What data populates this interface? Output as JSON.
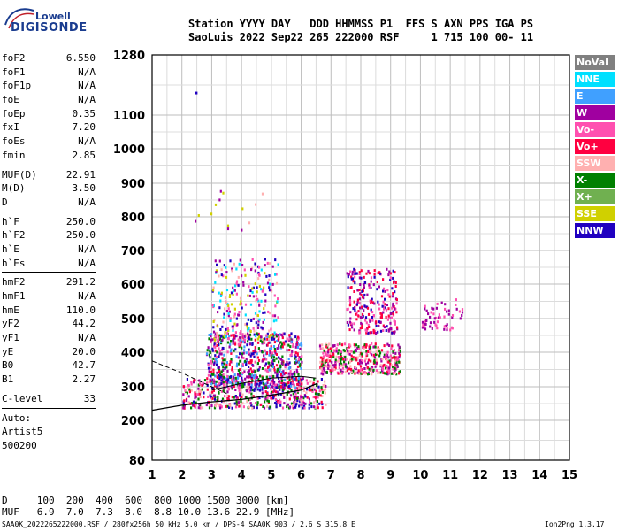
{
  "header": {
    "logo_top": "Lowell",
    "logo_main": "DIGISONDE",
    "line1": "Station YYYY DAY   DDD HHMMSS P1  FFS S AXN PPS IGA PS",
    "line2": "SaoLuis 2022 Sep22 265 222000 RSF     1 715 100 00- 11"
  },
  "params_groups": [
    [
      {
        "name": "foF2",
        "value": "6.550"
      },
      {
        "name": "foF1",
        "value": "N/A"
      },
      {
        "name": "foF1p",
        "value": "N/A"
      },
      {
        "name": "foE",
        "value": "N/A"
      },
      {
        "name": "foEp",
        "value": "0.35"
      },
      {
        "name": "fxI",
        "value": "7.20"
      },
      {
        "name": "foEs",
        "value": "N/A"
      },
      {
        "name": "fmin",
        "value": "2.85"
      }
    ],
    [
      {
        "name": "MUF(D)",
        "value": "22.91"
      },
      {
        "name": "M(D)",
        "value": "3.50"
      },
      {
        "name": "D",
        "value": "N/A"
      }
    ],
    [
      {
        "name": "h`F",
        "value": "250.0"
      },
      {
        "name": "h`F2",
        "value": "250.0"
      },
      {
        "name": "h`E",
        "value": "N/A"
      },
      {
        "name": "h`Es",
        "value": "N/A"
      }
    ],
    [
      {
        "name": "hmF2",
        "value": "291.2"
      },
      {
        "name": "hmF1",
        "value": "N/A"
      },
      {
        "name": "hmE",
        "value": "110.0"
      },
      {
        "name": "yF2",
        "value": "44.2"
      },
      {
        "name": "yF1",
        "value": "N/A"
      },
      {
        "name": "yE",
        "value": "20.0"
      },
      {
        "name": "B0",
        "value": "42.7"
      },
      {
        "name": "B1",
        "value": "2.27"
      }
    ],
    [
      {
        "name": "C-level",
        "value": "33"
      }
    ],
    [
      {
        "name": "Auto:",
        "value": ""
      },
      {
        "name": "Artist5",
        "value": ""
      },
      {
        "name": "500200",
        "value": ""
      }
    ]
  ],
  "legend": [
    {
      "label": "NoVal",
      "color": "#808080"
    },
    {
      "label": "NNE",
      "color": "#00e0ff"
    },
    {
      "label": "E",
      "color": "#40a0ff"
    },
    {
      "label": "W",
      "color": "#a000a0"
    },
    {
      "label": "Vo-",
      "color": "#ff50b0"
    },
    {
      "label": "Vo+",
      "color": "#ff0040"
    },
    {
      "label": "SSW",
      "color": "#ffb0b0"
    },
    {
      "label": "X-",
      "color": "#008000"
    },
    {
      "label": "X+",
      "color": "#70b050"
    },
    {
      "label": "SSE",
      "color": "#d0d000"
    },
    {
      "label": "NNW",
      "color": "#2000c0"
    }
  ],
  "chart_data": {
    "type": "scatter",
    "x_ticks": [
      "1",
      "2",
      "3",
      "4",
      "5",
      "6",
      "7",
      "8",
      "9",
      "10",
      "11",
      "12",
      "13",
      "14",
      "15"
    ],
    "y_ticks": [
      "80",
      "200",
      "300",
      "400",
      "500",
      "600",
      "700",
      "800",
      "900",
      "1000",
      "1100",
      "1280"
    ],
    "xlim": [
      1,
      15
    ],
    "y_tick_values": [
      80,
      200,
      300,
      400,
      500,
      600,
      700,
      800,
      900,
      1000,
      1100,
      1280
    ],
    "clusters": [
      {
        "fmin": 2.0,
        "fmax": 6.8,
        "hmin": 240,
        "hmax": 330,
        "n": 500,
        "colors": [
          "#ff50b0",
          "#a000a0",
          "#ff0040",
          "#2000c0",
          "#ffb0b0",
          "#008000"
        ]
      },
      {
        "fmin": 2.8,
        "fmax": 6.0,
        "hmin": 300,
        "hmax": 460,
        "n": 700,
        "colors": [
          "#a000a0",
          "#2000c0",
          "#ff50b0",
          "#ff0040",
          "#40a0ff",
          "#008000"
        ]
      },
      {
        "fmin": 3.0,
        "fmax": 5.2,
        "hmin": 440,
        "hmax": 680,
        "n": 260,
        "colors": [
          "#a000a0",
          "#2000c0",
          "#d0d000",
          "#ffb0b0",
          "#00e0ff",
          "#ff50b0"
        ]
      },
      {
        "fmin": 6.6,
        "fmax": 9.3,
        "hmin": 340,
        "hmax": 430,
        "n": 420,
        "colors": [
          "#ff50b0",
          "#ff0040",
          "#ffb0b0",
          "#a000a0",
          "#008000"
        ]
      },
      {
        "fmin": 7.5,
        "fmax": 9.2,
        "hmin": 460,
        "hmax": 650,
        "n": 260,
        "colors": [
          "#a000a0",
          "#ff50b0",
          "#2000c0",
          "#ff0040"
        ]
      },
      {
        "fmin": 10.0,
        "fmax": 11.4,
        "hmin": 470,
        "hmax": 560,
        "n": 60,
        "colors": [
          "#a000a0",
          "#ff50b0"
        ]
      },
      {
        "fmin": 2.4,
        "fmax": 4.8,
        "hmin": 760,
        "hmax": 900,
        "n": 14,
        "colors": [
          "#d0d000",
          "#a000a0",
          "#ffb0b0"
        ]
      }
    ],
    "trace_solid": [
      [
        1,
        230
      ],
      [
        2,
        245
      ],
      [
        3,
        255
      ],
      [
        4,
        262
      ],
      [
        5,
        275
      ],
      [
        6,
        290
      ],
      [
        6.55,
        310
      ]
    ],
    "trace_dashed": [
      [
        1,
        375
      ],
      [
        2,
        340
      ],
      [
        3,
        300
      ],
      [
        3.5,
        280
      ]
    ],
    "trace_upper": [
      [
        3,
        290
      ],
      [
        4,
        310
      ],
      [
        5,
        325
      ],
      [
        6,
        330
      ],
      [
        6.5,
        325
      ]
    ]
  },
  "footer": {
    "line1": "D     100  200  400  600  800 1000 1500 3000 [km]",
    "line2": "MUF   6.9  7.0  7.3  8.0  8.8 10.0 13.6 22.9 [MHz]",
    "footnote": "SAA0K_2022265222000.RSF / 280fx256h 50 kHz 5.0 km / DPS-4 SAA0K 903 / 2.6 S 315.8 E",
    "version": "Ion2Png 1.3.17"
  }
}
